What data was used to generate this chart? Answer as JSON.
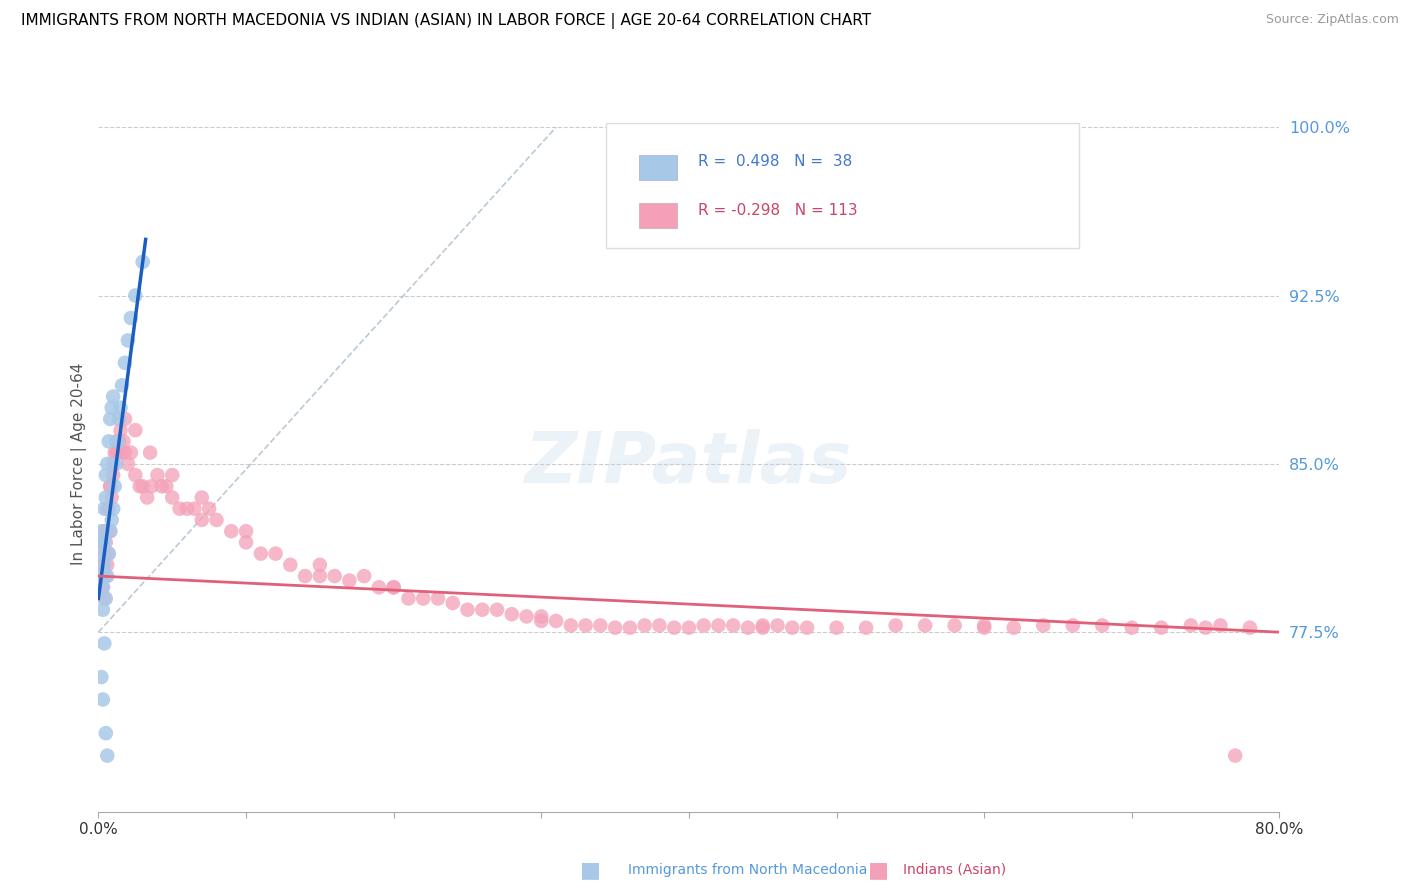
{
  "title": "IMMIGRANTS FROM NORTH MACEDONIA VS INDIAN (ASIAN) IN LABOR FORCE | AGE 20-64 CORRELATION CHART",
  "source": "Source: ZipAtlas.com",
  "ylabel": "In Labor Force | Age 20-64",
  "xlim": [
    0.0,
    0.8
  ],
  "ylim": [
    0.695,
    1.005
  ],
  "yticks": [
    0.775,
    0.85,
    0.925,
    1.0
  ],
  "ytick_labels": [
    "77.5%",
    "85.0%",
    "92.5%",
    "100.0%"
  ],
  "xticks": [
    0.0,
    0.1,
    0.2,
    0.3,
    0.4,
    0.5,
    0.6,
    0.7,
    0.8
  ],
  "xtick_labels": [
    "0.0%",
    "",
    "",
    "",
    "",
    "",
    "",
    "",
    "80.0%"
  ],
  "blue_R": 0.498,
  "blue_N": 38,
  "pink_R": -0.298,
  "pink_N": 113,
  "blue_color": "#a8c8e8",
  "pink_color": "#f4a0b8",
  "blue_line_color": "#1a5fbf",
  "pink_line_color": "#e0607a",
  "legend_label_blue": "Immigrants from North Macedonia",
  "legend_label_pink": "Indians (Asian)",
  "blue_scatter_x": [
    0.001,
    0.002,
    0.002,
    0.003,
    0.003,
    0.003,
    0.004,
    0.004,
    0.004,
    0.005,
    0.005,
    0.005,
    0.006,
    0.006,
    0.007,
    0.007,
    0.008,
    0.008,
    0.009,
    0.009,
    0.01,
    0.01,
    0.011,
    0.012,
    0.013,
    0.014,
    0.015,
    0.016,
    0.018,
    0.02,
    0.022,
    0.025,
    0.03,
    0.002,
    0.003,
    0.004,
    0.005,
    0.006
  ],
  "blue_scatter_y": [
    0.81,
    0.8,
    0.82,
    0.785,
    0.795,
    0.815,
    0.805,
    0.815,
    0.83,
    0.79,
    0.835,
    0.845,
    0.8,
    0.85,
    0.81,
    0.86,
    0.82,
    0.87,
    0.825,
    0.875,
    0.83,
    0.88,
    0.84,
    0.85,
    0.86,
    0.87,
    0.875,
    0.885,
    0.895,
    0.905,
    0.915,
    0.925,
    0.94,
    0.755,
    0.745,
    0.77,
    0.73,
    0.72
  ],
  "pink_scatter_x": [
    0.002,
    0.003,
    0.003,
    0.004,
    0.004,
    0.005,
    0.005,
    0.006,
    0.006,
    0.007,
    0.007,
    0.008,
    0.008,
    0.009,
    0.01,
    0.01,
    0.011,
    0.012,
    0.013,
    0.014,
    0.015,
    0.016,
    0.017,
    0.018,
    0.02,
    0.022,
    0.025,
    0.028,
    0.03,
    0.033,
    0.036,
    0.04,
    0.043,
    0.046,
    0.05,
    0.055,
    0.06,
    0.065,
    0.07,
    0.075,
    0.08,
    0.09,
    0.1,
    0.11,
    0.12,
    0.13,
    0.14,
    0.15,
    0.16,
    0.17,
    0.18,
    0.19,
    0.2,
    0.21,
    0.22,
    0.23,
    0.24,
    0.25,
    0.26,
    0.27,
    0.28,
    0.29,
    0.3,
    0.31,
    0.32,
    0.33,
    0.34,
    0.35,
    0.36,
    0.37,
    0.38,
    0.39,
    0.4,
    0.41,
    0.42,
    0.43,
    0.44,
    0.45,
    0.46,
    0.47,
    0.48,
    0.5,
    0.52,
    0.54,
    0.56,
    0.58,
    0.6,
    0.62,
    0.64,
    0.66,
    0.68,
    0.7,
    0.72,
    0.74,
    0.76,
    0.78,
    0.004,
    0.006,
    0.008,
    0.012,
    0.018,
    0.025,
    0.035,
    0.05,
    0.07,
    0.1,
    0.15,
    0.2,
    0.3,
    0.45,
    0.6,
    0.75,
    0.77
  ],
  "pink_scatter_y": [
    0.8,
    0.795,
    0.805,
    0.79,
    0.81,
    0.8,
    0.815,
    0.805,
    0.82,
    0.81,
    0.83,
    0.82,
    0.84,
    0.835,
    0.845,
    0.85,
    0.855,
    0.86,
    0.855,
    0.86,
    0.865,
    0.855,
    0.86,
    0.855,
    0.85,
    0.855,
    0.845,
    0.84,
    0.84,
    0.835,
    0.84,
    0.845,
    0.84,
    0.84,
    0.835,
    0.83,
    0.83,
    0.83,
    0.825,
    0.83,
    0.825,
    0.82,
    0.815,
    0.81,
    0.81,
    0.805,
    0.8,
    0.8,
    0.8,
    0.798,
    0.8,
    0.795,
    0.795,
    0.79,
    0.79,
    0.79,
    0.788,
    0.785,
    0.785,
    0.785,
    0.783,
    0.782,
    0.78,
    0.78,
    0.778,
    0.778,
    0.778,
    0.777,
    0.777,
    0.778,
    0.778,
    0.777,
    0.777,
    0.778,
    0.778,
    0.778,
    0.777,
    0.777,
    0.778,
    0.777,
    0.777,
    0.777,
    0.777,
    0.778,
    0.778,
    0.778,
    0.777,
    0.777,
    0.778,
    0.778,
    0.778,
    0.777,
    0.777,
    0.778,
    0.778,
    0.777,
    0.82,
    0.83,
    0.84,
    0.855,
    0.87,
    0.865,
    0.855,
    0.845,
    0.835,
    0.82,
    0.805,
    0.795,
    0.782,
    0.778,
    0.778,
    0.777,
    0.72
  ],
  "ref_line_x": [
    0.0,
    0.31
  ],
  "ref_line_y": [
    0.775,
    1.0
  ],
  "blue_trend_x": [
    0.0,
    0.032
  ],
  "blue_trend_y": [
    0.79,
    0.95
  ],
  "pink_trend_x": [
    0.0,
    0.8
  ],
  "pink_trend_y": [
    0.8,
    0.775
  ]
}
